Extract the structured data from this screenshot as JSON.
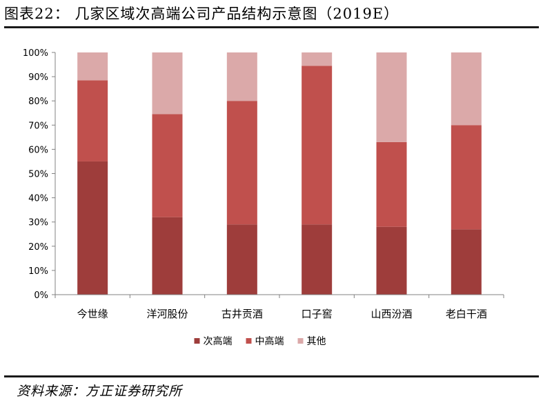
{
  "header": {
    "title": "图表22： 几家区域次高端公司产品结构示意图（2019E）"
  },
  "footer": {
    "source": "资料来源：方正证券研究所"
  },
  "colors": {
    "series": [
      "#9e3d3b",
      "#c0504d",
      "#dba9a9"
    ],
    "axis": "#808080"
  },
  "chart_data": {
    "type": "bar",
    "stacked": true,
    "percent": true,
    "categories": [
      "今世缘",
      "洋河股份",
      "古井贡酒",
      "口子窖",
      "山西汾酒",
      "老白干酒"
    ],
    "series": [
      {
        "name": "次高端",
        "values": [
          55,
          32,
          29,
          29,
          28,
          27
        ]
      },
      {
        "name": "中高端",
        "values": [
          33.5,
          42.5,
          51,
          65.5,
          35,
          43
        ]
      },
      {
        "name": "其他",
        "values": [
          11.5,
          25.5,
          20,
          5.5,
          37,
          30
        ]
      }
    ],
    "yticks": [
      "0%",
      "10%",
      "20%",
      "30%",
      "40%",
      "50%",
      "60%",
      "70%",
      "80%",
      "90%",
      "100%"
    ],
    "ylim": [
      0,
      100
    ],
    "grid": false,
    "legend_position": "bottom"
  }
}
